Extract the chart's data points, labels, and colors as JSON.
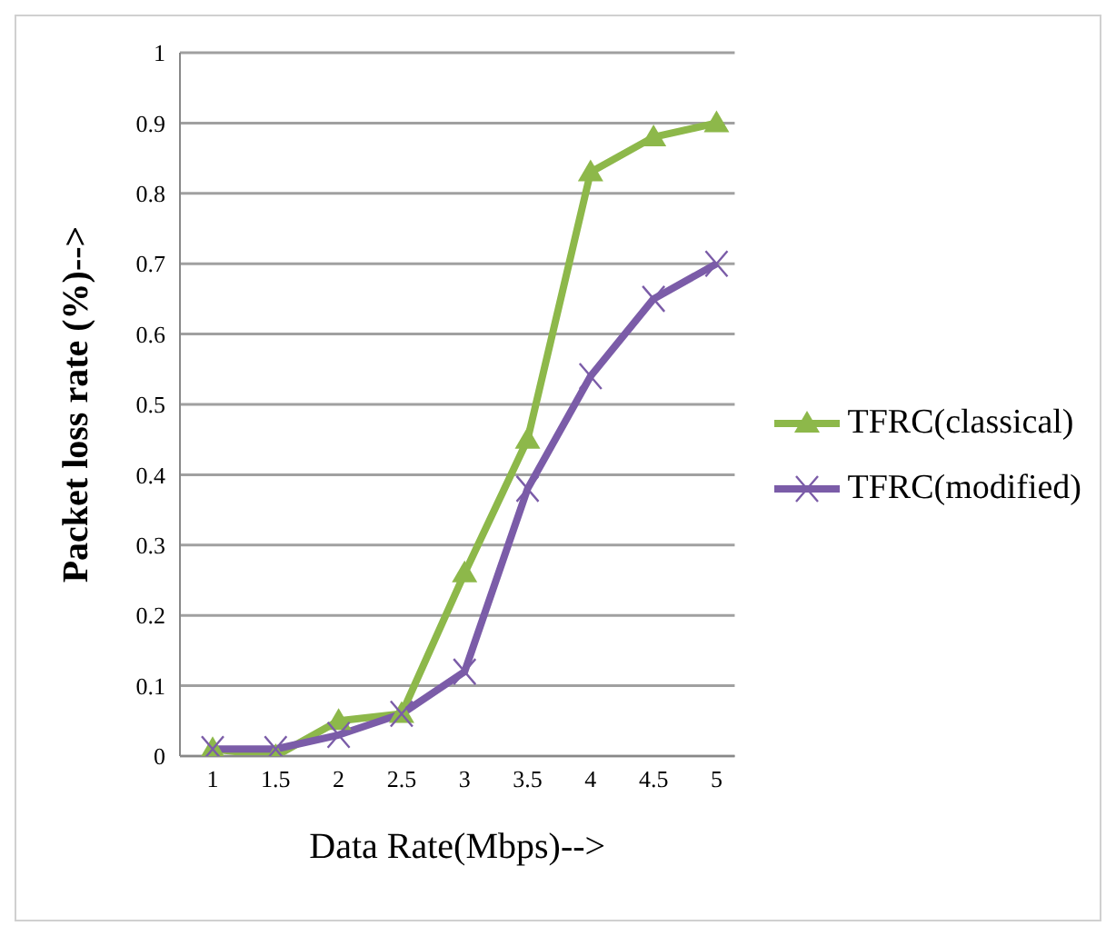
{
  "chart_data": {
    "type": "line",
    "xlabel": "Data Rate(Mbps)-->",
    "ylabel": "Packet loss rate  (%)-->",
    "categories": [
      "1",
      "1.5",
      "2",
      "2.5",
      "3",
      "3.5",
      "4",
      "4.5",
      "5"
    ],
    "series": [
      {
        "name": "TFRC(classical)",
        "color": "#8db84a",
        "marker": "triangle",
        "values": [
          0.01,
          0,
          0.05,
          0.06,
          0.26,
          0.45,
          0.83,
          0.88,
          0.9
        ]
      },
      {
        "name": "TFRC(modified)",
        "color": "#7b5ca8",
        "marker": "cross",
        "values": [
          0.01,
          0.01,
          0.03,
          0.06,
          0.12,
          0.38,
          0.54,
          0.65,
          0.7
        ]
      }
    ],
    "ylim": [
      0,
      1
    ],
    "yticks": [
      0,
      0.1,
      0.2,
      0.3,
      0.4,
      0.5,
      0.6,
      0.7,
      0.8,
      0.9,
      1
    ],
    "grid": "y",
    "legend": "right"
  }
}
